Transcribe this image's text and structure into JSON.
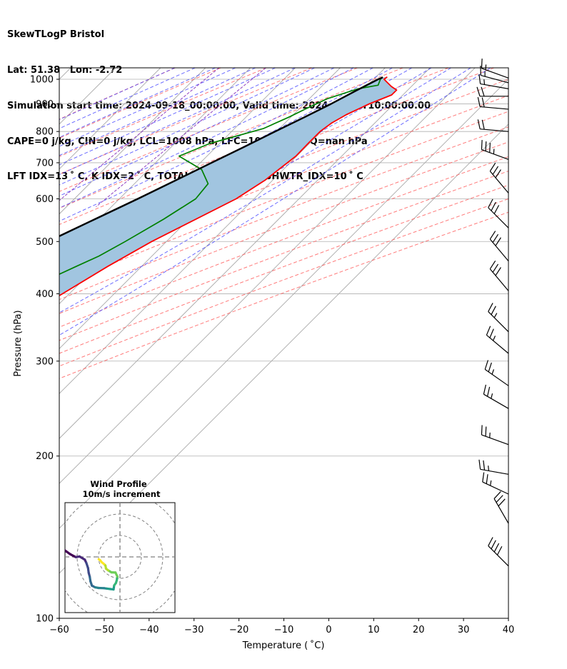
{
  "header": {
    "line1": "SkewTLogP Bristol",
    "line2": "Lat: 51.38   Lon: -2.72",
    "line3": "Simulation start time: 2024-09-18_00:00:00, Valid time: 2024-09-18T10:00:00.00",
    "line4": "CAPE=0 j/kg, CIN=0 j/kg, LCL=1008 hPa, LFC=1008 hPa, EQ=nan hPa",
    "line5": "LFT IDX=13 ˚ C, K IDX=2 ˚ C, TOTAL TOTS=34 ˚ C, SHWTR_IDX=10 ˚ C"
  },
  "colors": {
    "temperature": "#ff0000",
    "dewpoint": "#008000",
    "parcel": "#000000",
    "cape_fill": "#a1c5e0",
    "dry_adiabat": "#ff5a5a",
    "moist_adiabat": "#3a3aff",
    "mixing_ratio": "#9040c0",
    "isotherm": "#a9a9a9"
  },
  "chart_data": {
    "type": "line",
    "title": "",
    "xlabel": "Temperature ( ˚C)",
    "ylabel": "Pressure (hPa)",
    "xlim": [
      -60,
      40
    ],
    "ylim": [
      1050,
      100
    ],
    "yscale": "log",
    "xticks": [
      "−60",
      "−50",
      "−40",
      "−30",
      "−20",
      "−10",
      "0",
      "10",
      "20",
      "30",
      "40"
    ],
    "xtick_values": [
      -60,
      -50,
      -40,
      -30,
      -20,
      -10,
      0,
      10,
      20,
      30,
      40
    ],
    "yticks": [
      "100",
      "200",
      "300",
      "400",
      "500",
      "600",
      "700",
      "800",
      "900",
      "1000"
    ],
    "ytick_values": [
      100,
      200,
      300,
      400,
      500,
      600,
      700,
      800,
      900,
      1000
    ],
    "grid": true,
    "series": [
      {
        "key": "temperature",
        "points": [
          [
            1010,
            12.5
          ],
          [
            1000,
            12.3
          ],
          [
            970,
            15.5
          ],
          [
            955,
            17.5
          ],
          [
            935,
            17.5
          ],
          [
            900,
            14.5
          ],
          [
            860,
            11.8
          ],
          [
            830,
            10.4
          ],
          [
            800,
            9.7
          ],
          [
            760,
            9.7
          ],
          [
            720,
            9.8
          ],
          [
            650,
            8.3
          ],
          [
            600,
            6.0
          ],
          [
            500,
            -3.3
          ],
          [
            450,
            -7.5
          ],
          [
            400,
            -11.5
          ],
          [
            350,
            -16.5
          ],
          [
            300,
            -22.5
          ],
          [
            270,
            -27.0
          ],
          [
            245,
            -31.5
          ],
          [
            230,
            -34.0
          ],
          [
            210,
            -36.5
          ],
          [
            195,
            -38.7
          ],
          [
            180,
            -40.6
          ],
          [
            170,
            -42.6
          ],
          [
            155,
            -45.4
          ],
          [
            140,
            -48.7
          ],
          [
            125,
            -51.5
          ],
          [
            115,
            -51.7
          ],
          [
            105,
            -52.2
          ],
          [
            100,
            -52.7
          ]
        ]
      },
      {
        "key": "dewpoint",
        "points": [
          [
            1010,
            11.5
          ],
          [
            1000,
            11.5
          ],
          [
            975,
            12.3
          ],
          [
            960,
            8.6
          ],
          [
            920,
            4.0
          ],
          [
            880,
            1.4
          ],
          [
            850,
            -0.5
          ],
          [
            810,
            -3.6
          ],
          [
            760,
            -12.2
          ],
          [
            720,
            -16.2
          ],
          [
            680,
            -8.2
          ],
          [
            640,
            -3.6
          ],
          [
            600,
            -3.0
          ],
          [
            550,
            -5.6
          ],
          [
            500,
            -9.2
          ],
          [
            470,
            -11.8
          ],
          [
            450,
            -14.5
          ],
          [
            400,
            -21.6
          ],
          [
            375,
            -26.0
          ],
          [
            340,
            -32.8
          ],
          [
            300,
            -39.6
          ],
          [
            290,
            -41.1
          ],
          [
            270,
            -44.1
          ],
          [
            245,
            -51.0
          ],
          [
            230,
            -57.5
          ],
          [
            220,
            -62.0
          ],
          [
            210,
            -67.0
          ],
          [
            190,
            -70.1
          ],
          [
            175,
            -72.1
          ],
          [
            160,
            -75.1
          ],
          [
            145,
            -78.6
          ],
          [
            130,
            -82.3
          ],
          [
            115,
            -86.8
          ],
          [
            100,
            -91.5
          ]
        ]
      },
      {
        "key": "parcel",
        "points": [
          [
            1008,
            11.6
          ],
          [
            1000,
            11.0
          ],
          [
            950,
            8.5
          ],
          [
            900,
            6.0
          ],
          [
            850,
            3.0
          ],
          [
            800,
            -0.3
          ],
          [
            750,
            -3.7
          ],
          [
            700,
            -7.5
          ],
          [
            650,
            -11.5
          ],
          [
            600,
            -15.9
          ],
          [
            550,
            -20.9
          ],
          [
            500,
            -26.4
          ],
          [
            450,
            -32.6
          ],
          [
            400,
            -39.6
          ],
          [
            350,
            -47.4
          ],
          [
            300,
            -56.0
          ],
          [
            250,
            -65.3
          ],
          [
            200,
            -75.0
          ],
          [
            150,
            -86.0
          ],
          [
            120,
            -93.8
          ],
          [
            100,
            -99.6
          ]
        ]
      }
    ],
    "inset": {
      "title": "Wind Profile",
      "subtitle": "10m/s increment",
      "hodograph": [
        [
          -7.9,
          4.8
        ],
        [
          -5.1,
          2.6
        ],
        [
          -3.3,
          1.3
        ],
        [
          -1.6,
          0.4
        ],
        [
          -0.6,
          -0.1
        ],
        [
          1.1,
          0.2
        ],
        [
          3.6,
          -1.3
        ],
        [
          4.3,
          -2.8
        ],
        [
          5.1,
          -5.2
        ],
        [
          5.4,
          -7.4
        ],
        [
          5.9,
          -9.3
        ],
        [
          6.2,
          -11.3
        ],
        [
          6.9,
          -13.4
        ],
        [
          8.4,
          -14.2
        ],
        [
          10.0,
          -14.5
        ],
        [
          12.6,
          -14.6
        ],
        [
          14.0,
          -14.8
        ],
        [
          15.5,
          -15.0
        ],
        [
          17.0,
          -15.2
        ],
        [
          17.3,
          -13.3
        ],
        [
          18.1,
          -12.2
        ],
        [
          18.5,
          -10.9
        ],
        [
          18.8,
          -9.2
        ],
        [
          17.9,
          -7.3
        ],
        [
          16.0,
          -7.2
        ],
        [
          14.5,
          -6.3
        ],
        [
          13.5,
          -5.5
        ],
        [
          13.2,
          -4.0
        ],
        [
          12.5,
          -3.3
        ],
        [
          11.4,
          -2.4
        ],
        [
          10.8,
          -1.6
        ],
        [
          10.1,
          -1.1
        ]
      ]
    },
    "wind_barbs": [
      {
        "p": 125,
        "spd_kt": 40,
        "dir": 315
      },
      {
        "p": 150,
        "spd_kt": 30,
        "dir": 330
      },
      {
        "p": 170,
        "spd_kt": 25,
        "dir": 295
      },
      {
        "p": 185,
        "spd_kt": 25,
        "dir": 280
      },
      {
        "p": 210,
        "spd_kt": 25,
        "dir": 290
      },
      {
        "p": 245,
        "spd_kt": 25,
        "dir": 300
      },
      {
        "p": 270,
        "spd_kt": 25,
        "dir": 305
      },
      {
        "p": 310,
        "spd_kt": 25,
        "dir": 310
      },
      {
        "p": 340,
        "spd_kt": 25,
        "dir": 315
      },
      {
        "p": 405,
        "spd_kt": 30,
        "dir": 320
      },
      {
        "p": 460,
        "spd_kt": 30,
        "dir": 320
      },
      {
        "p": 530,
        "spd_kt": 30,
        "dir": 315
      },
      {
        "p": 615,
        "spd_kt": 30,
        "dir": 320
      },
      {
        "p": 710,
        "spd_kt": 35,
        "dir": 290
      },
      {
        "p": 800,
        "spd_kt": 20,
        "dir": 275
      },
      {
        "p": 880,
        "spd_kt": 20,
        "dir": 275
      },
      {
        "p": 930,
        "spd_kt": 20,
        "dir": 270
      },
      {
        "p": 960,
        "spd_kt": 15,
        "dir": 280
      },
      {
        "p": 985,
        "spd_kt": 15,
        "dir": 285
      },
      {
        "p": 1005,
        "spd_kt": 15,
        "dir": 290
      }
    ]
  }
}
